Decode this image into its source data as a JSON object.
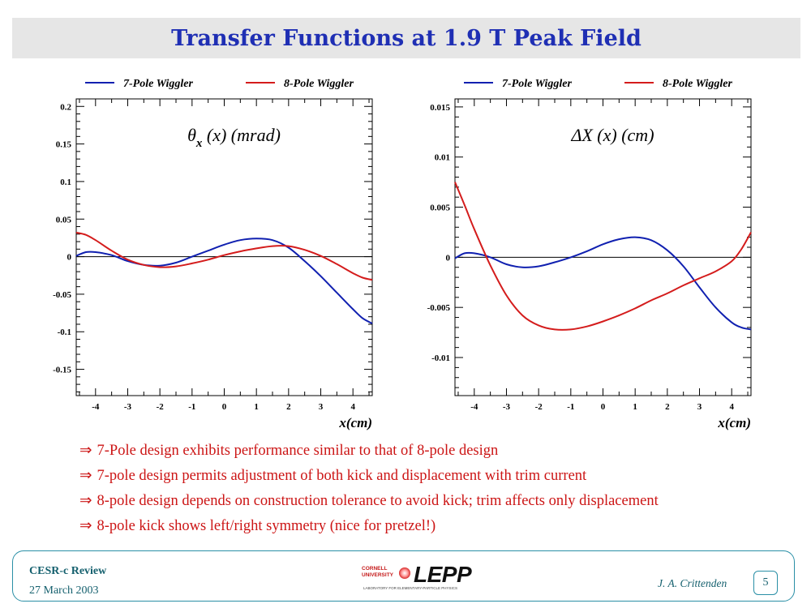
{
  "title": "Transfer Functions at 1.9 T Peak Field",
  "colors": {
    "title": "#1f2fb4",
    "seven_pole": "#1020b0",
    "eight_pole": "#d41c1c",
    "bullet": "#cc1515",
    "footer": "#15606e"
  },
  "chart_data": [
    {
      "type": "line",
      "title": "θx (x)  (mrad)",
      "title_main": "θ",
      "title_sub": "x",
      "title_rest": " (x)  (mrad)",
      "xlabel": "x(cm)",
      "ylabel": "",
      "xlim": [
        -4.6,
        4.6
      ],
      "ylim": [
        -0.185,
        0.21
      ],
      "xticks": [
        -4,
        -3,
        -2,
        -1,
        0,
        1,
        2,
        3,
        4
      ],
      "yticks": [
        0.2,
        0.15,
        0.1,
        0.05,
        0,
        -0.05,
        -0.1,
        -0.15
      ],
      "ytick_labels": [
        "0.2",
        "0.15",
        "0.1",
        "0.05",
        "0",
        "-0.05",
        "-0.1",
        "-0.15"
      ],
      "legend_placement": "top",
      "grid": false,
      "zero_line": true,
      "series": [
        {
          "name": "7-Pole Wiggler",
          "color": "#1020b0",
          "x": [
            -4.6,
            -4.3,
            -4.0,
            -3.5,
            -3.0,
            -2.5,
            -2.0,
            -1.5,
            -1.0,
            -0.5,
            0,
            0.5,
            1.0,
            1.5,
            2.0,
            2.5,
            3.0,
            3.5,
            4.0,
            4.3,
            4.6
          ],
          "y": [
            0.001,
            0.006,
            0.006,
            0.002,
            -0.006,
            -0.011,
            -0.012,
            -0.008,
            0.0,
            0.008,
            0.016,
            0.022,
            0.024,
            0.022,
            0.012,
            -0.006,
            -0.026,
            -0.048,
            -0.07,
            -0.082,
            -0.089
          ]
        },
        {
          "name": "8-Pole Wiggler",
          "color": "#d41c1c",
          "x": [
            -4.6,
            -4.3,
            -4.0,
            -3.5,
            -3.0,
            -2.5,
            -2.0,
            -1.5,
            -1.0,
            -0.5,
            0,
            0.5,
            1.0,
            1.5,
            2.0,
            2.5,
            3.0,
            3.5,
            4.0,
            4.3,
            4.6
          ],
          "y": [
            0.032,
            0.029,
            0.022,
            0.008,
            -0.004,
            -0.011,
            -0.014,
            -0.013,
            -0.009,
            -0.004,
            0.002,
            0.007,
            0.011,
            0.014,
            0.014,
            0.009,
            0.001,
            -0.01,
            -0.022,
            -0.028,
            -0.031
          ]
        }
      ]
    },
    {
      "type": "line",
      "title": "ΔX (x) (cm)",
      "title_main": "ΔX (x) (cm)",
      "title_sub": "",
      "title_rest": "",
      "xlabel": "x(cm)",
      "ylabel": "",
      "xlim": [
        -4.6,
        4.6
      ],
      "ylim": [
        -0.0138,
        0.0158
      ],
      "xticks": [
        -4,
        -3,
        -2,
        -1,
        0,
        1,
        2,
        3,
        4
      ],
      "yticks": [
        0.015,
        0.01,
        0.005,
        0,
        -0.005,
        -0.01
      ],
      "ytick_labels": [
        "0.015",
        "0.01",
        "0.005",
        "0",
        "-0.005",
        "-0.01"
      ],
      "legend_placement": "top",
      "grid": false,
      "zero_line": true,
      "series": [
        {
          "name": "7-Pole Wiggler",
          "color": "#1020b0",
          "x": [
            -4.6,
            -4.3,
            -4.0,
            -3.5,
            -3.0,
            -2.5,
            -2.0,
            -1.5,
            -1.0,
            -0.5,
            0,
            0.5,
            1.0,
            1.5,
            2.0,
            2.5,
            3.0,
            3.5,
            4.0,
            4.3,
            4.6
          ],
          "y": [
            -0.0001,
            0.0004,
            0.0004,
            0.0,
            -0.0007,
            -0.001,
            -0.0009,
            -0.0005,
            0.0,
            0.0006,
            0.0013,
            0.0018,
            0.002,
            0.0017,
            0.0007,
            -0.0009,
            -0.003,
            -0.005,
            -0.0065,
            -0.007,
            -0.0072
          ]
        },
        {
          "name": "8-Pole Wiggler",
          "color": "#d41c1c",
          "x": [
            -4.6,
            -4.3,
            -4.0,
            -3.5,
            -3.0,
            -2.5,
            -2.0,
            -1.5,
            -1.0,
            -0.5,
            0,
            0.5,
            1.0,
            1.5,
            2.0,
            2.5,
            3.0,
            3.5,
            4.0,
            4.3,
            4.6
          ],
          "y": [
            0.0075,
            0.0052,
            0.0028,
            -0.0008,
            -0.0038,
            -0.0058,
            -0.0068,
            -0.0072,
            -0.0072,
            -0.0069,
            -0.0064,
            -0.0058,
            -0.0051,
            -0.0043,
            -0.0036,
            -0.0028,
            -0.0021,
            -0.0014,
            -0.0004,
            0.0008,
            0.0025
          ]
        }
      ]
    }
  ],
  "bullets": [
    {
      "arrow": "⇒",
      "text": "7-Pole design exhibits performance similar to that of 8-pole design"
    },
    {
      "arrow": "⇒",
      "text": "7-pole design permits adjustment of both kick and displacement with trim current"
    },
    {
      "arrow": "⇒",
      "text": "8-pole design depends on construction tolerance to avoid kick; trim affects only displacement"
    },
    {
      "arrow": "⇒",
      "text": "8-pole kick shows left/right symmetry (nice for pretzel!)"
    }
  ],
  "footer": {
    "conference": "CESR-c Review",
    "date": "27 March 2003",
    "author": "J. A. Crittenden",
    "page": "5",
    "logo": {
      "university_line1": "CORNELL",
      "university_line2": "UNIVERSITY",
      "text": "LEPP",
      "tagline": "LABORATORY FOR ELEMENTARY-PARTICLE PHYSICS"
    }
  }
}
